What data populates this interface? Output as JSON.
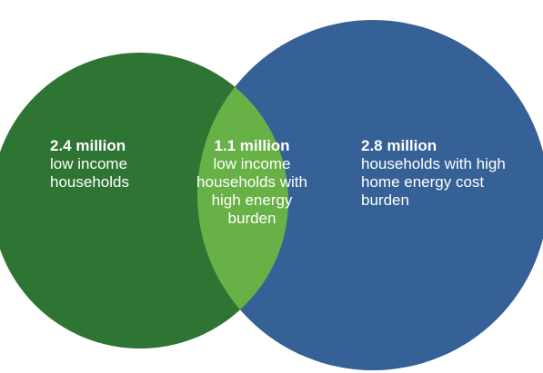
{
  "colors": {
    "left_circle": "#2e7433",
    "right_circle": "#356196",
    "overlap": "#68b146",
    "text": "#ffffff"
  },
  "sets": {
    "left": {
      "amount": "2.4 million",
      "description": "low income households"
    },
    "overlap": {
      "amount": "1.1 million",
      "description": "low income households with high energy burden"
    },
    "right": {
      "amount": "2.8 million",
      "description": "households with high home energy cost burden"
    }
  }
}
